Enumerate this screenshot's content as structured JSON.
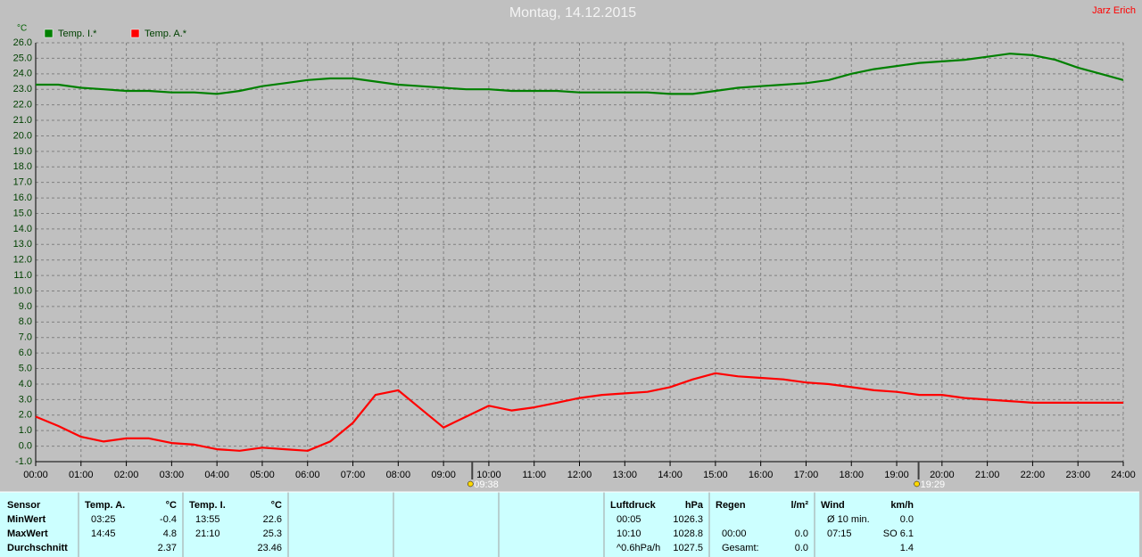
{
  "chart_data": {
    "type": "line",
    "title": "Montag, 14.12.2015",
    "y_label": "°C",
    "legend": "top-left",
    "grid": true,
    "x": [
      0,
      0.5,
      1,
      1.5,
      2,
      2.5,
      3,
      3.5,
      4,
      4.5,
      5,
      5.5,
      6,
      6.5,
      7,
      7.5,
      8,
      8.5,
      9,
      9.5,
      10,
      10.5,
      11,
      11.5,
      12,
      12.5,
      13,
      13.5,
      14,
      14.5,
      15,
      15.5,
      16,
      16.5,
      17,
      17.5,
      18,
      18.5,
      19,
      19.5,
      20,
      20.5,
      21,
      21.5,
      22,
      22.5,
      23,
      23.5,
      24
    ],
    "series": [
      {
        "name": "Temp. I.*",
        "color": "#008000",
        "values": [
          23.3,
          23.3,
          23.1,
          23.0,
          22.9,
          22.9,
          22.8,
          22.8,
          22.7,
          22.9,
          23.2,
          23.4,
          23.6,
          23.7,
          23.7,
          23.5,
          23.3,
          23.2,
          23.1,
          23.0,
          23.0,
          22.9,
          22.9,
          22.9,
          22.8,
          22.8,
          22.8,
          22.8,
          22.7,
          22.7,
          22.9,
          23.1,
          23.2,
          23.3,
          23.4,
          23.6,
          24.0,
          24.3,
          24.5,
          24.7,
          24.8,
          24.9,
          25.1,
          25.3,
          25.2,
          24.9,
          24.4,
          24.0,
          23.6
        ]
      },
      {
        "name": "Temp. A.*",
        "color": "#ff0000",
        "values": [
          1.9,
          1.3,
          0.6,
          0.3,
          0.5,
          0.5,
          0.2,
          0.1,
          -0.2,
          -0.3,
          -0.1,
          -0.2,
          -0.3,
          0.3,
          1.5,
          3.3,
          3.6,
          2.4,
          1.2,
          1.9,
          2.6,
          2.3,
          2.5,
          2.8,
          3.1,
          3.3,
          3.4,
          3.5,
          3.8,
          4.3,
          4.7,
          4.5,
          4.4,
          4.3,
          4.1,
          4.0,
          3.8,
          3.6,
          3.5,
          3.3,
          3.3,
          3.1,
          3.0,
          2.9,
          2.8,
          2.8,
          2.8,
          2.8,
          2.8
        ]
      }
    ],
    "xlim": [
      0,
      24
    ],
    "ylim": [
      -1,
      26
    ],
    "xticks": [
      {
        "value": 0,
        "label": "00:00"
      },
      {
        "value": 1,
        "label": "01:00"
      },
      {
        "value": 2,
        "label": "02:00"
      },
      {
        "value": 3,
        "label": "03:00"
      },
      {
        "value": 4,
        "label": "04:00"
      },
      {
        "value": 5,
        "label": "05:00"
      },
      {
        "value": 6,
        "label": "06:00"
      },
      {
        "value": 7,
        "label": "07:00"
      },
      {
        "value": 8,
        "label": "08:00"
      },
      {
        "value": 9,
        "label": "09:00"
      },
      {
        "value": 10,
        "label": "10:00"
      },
      {
        "value": 11,
        "label": "11:00"
      },
      {
        "value": 12,
        "label": "12:00"
      },
      {
        "value": 13,
        "label": "13:00"
      },
      {
        "value": 14,
        "label": "14:00"
      },
      {
        "value": 15,
        "label": "15:00"
      },
      {
        "value": 16,
        "label": "16:00"
      },
      {
        "value": 17,
        "label": "17:00"
      },
      {
        "value": 18,
        "label": "18:00"
      },
      {
        "value": 19,
        "label": "19:00"
      },
      {
        "value": 20,
        "label": "20:00"
      },
      {
        "value": 21,
        "label": "21:00"
      },
      {
        "value": 22,
        "label": "22:00"
      },
      {
        "value": 23,
        "label": "23:00"
      },
      {
        "value": 24,
        "label": "24:00"
      }
    ],
    "yticks": [
      {
        "value": -1,
        "label": "-1.0"
      },
      {
        "value": 0,
        "label": "0.0"
      },
      {
        "value": 1,
        "label": "1.0"
      },
      {
        "value": 2,
        "label": "2.0"
      },
      {
        "value": 3,
        "label": "3.0"
      },
      {
        "value": 4,
        "label": "4.0"
      },
      {
        "value": 5,
        "label": "5.0"
      },
      {
        "value": 6,
        "label": "6.0"
      },
      {
        "value": 7,
        "label": "7.0"
      },
      {
        "value": 8,
        "label": "8.0"
      },
      {
        "value": 9,
        "label": "9.0"
      },
      {
        "value": 10,
        "label": "10.0"
      },
      {
        "value": 11,
        "label": "11.0"
      },
      {
        "value": 12,
        "label": "12.0"
      },
      {
        "value": 13,
        "label": "13.0"
      },
      {
        "value": 14,
        "label": "14.0"
      },
      {
        "value": 15,
        "label": "15.0"
      },
      {
        "value": 16,
        "label": "16.0"
      },
      {
        "value": 17,
        "label": "17.0"
      },
      {
        "value": 18,
        "label": "18.0"
      },
      {
        "value": 19,
        "label": "19.0"
      },
      {
        "value": 20,
        "label": "20.0"
      },
      {
        "value": 21,
        "label": "21.0"
      },
      {
        "value": 22,
        "label": "22.0"
      },
      {
        "value": 23,
        "label": "23.0"
      },
      {
        "value": 24,
        "label": "24.0"
      },
      {
        "value": 25,
        "label": "25.0"
      },
      {
        "value": 26,
        "label": "26.0"
      }
    ],
    "sun_events": [
      {
        "x": 9.633,
        "label": "09:38"
      },
      {
        "x": 19.483,
        "label": "19:29"
      }
    ]
  },
  "author": "Jarz Erich",
  "table": {
    "row_labels": [
      "Sensor",
      "MinWert",
      "MaxWert",
      "Durchschnitt"
    ],
    "groups": [
      {
        "header": [
          "Temp. A.",
          "°C"
        ],
        "rows": [
          [
            "03:25",
            "-0.4"
          ],
          [
            "14:45",
            "4.8"
          ],
          [
            "2.37"
          ]
        ]
      },
      {
        "header": [
          "Temp. I.",
          "°C"
        ],
        "rows": [
          [
            "13:55",
            "22.6"
          ],
          [
            "21:10",
            "25.3"
          ],
          [
            "23.46"
          ]
        ]
      },
      {
        "header": [
          "Luftdruck",
          "hPa"
        ],
        "rows": [
          [
            "00:05",
            "1026.3"
          ],
          [
            "10:10",
            "1028.8"
          ],
          [
            "^0.6hPa/h",
            "1027.5"
          ]
        ]
      },
      {
        "header": [
          "Regen",
          "l/m²"
        ],
        "rows": [
          null,
          [
            "00:00",
            "0.0"
          ],
          [
            "Gesamt:",
            "0.0"
          ]
        ]
      },
      {
        "header": [
          "Wind",
          "km/h"
        ],
        "rows": [
          [
            "Ø 10 min.",
            "0.0"
          ],
          [
            "07:15",
            "SO 6.1"
          ],
          [
            "1.4"
          ]
        ]
      }
    ]
  }
}
